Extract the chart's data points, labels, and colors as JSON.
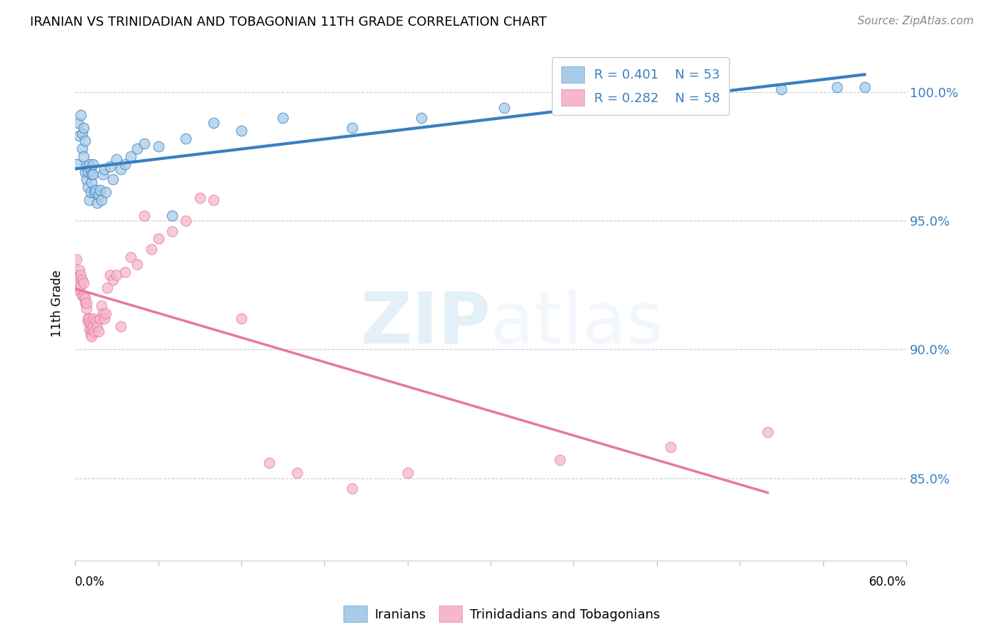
{
  "title": "IRANIAN VS TRINIDADIAN AND TOBAGONIAN 11TH GRADE CORRELATION CHART",
  "source": "Source: ZipAtlas.com",
  "ylabel": "11th Grade",
  "ytick_labels": [
    "85.0%",
    "90.0%",
    "95.0%",
    "100.0%"
  ],
  "ytick_values": [
    0.85,
    0.9,
    0.95,
    1.0
  ],
  "xmin": 0.0,
  "xmax": 0.6,
  "ymin": 0.818,
  "ymax": 1.018,
  "legend_R_iranian": "R = 0.401",
  "legend_N_iranian": "N = 53",
  "legend_R_trini": "R = 0.282",
  "legend_N_trini": "N = 58",
  "color_iranian": "#a8cce8",
  "color_trini": "#f5b8cb",
  "color_iranian_line": "#3a7fc1",
  "color_trini_line": "#e8789a",
  "color_trini_line_dash": "#e8a0b8",
  "color_legend_text": "#3a7fc1",
  "legend_label_iranian": "Iranians",
  "legend_label_trini": "Trinidadians and Tobagonians",
  "iranian_x": [
    0.001,
    0.002,
    0.003,
    0.004,
    0.005,
    0.005,
    0.006,
    0.006,
    0.007,
    0.007,
    0.008,
    0.008,
    0.009,
    0.009,
    0.01,
    0.01,
    0.011,
    0.011,
    0.012,
    0.012,
    0.013,
    0.013,
    0.014,
    0.015,
    0.016,
    0.017,
    0.018,
    0.019,
    0.02,
    0.021,
    0.022,
    0.025,
    0.027,
    0.03,
    0.033,
    0.036,
    0.04,
    0.045,
    0.05,
    0.06,
    0.07,
    0.08,
    0.1,
    0.12,
    0.15,
    0.2,
    0.25,
    0.31,
    0.38,
    0.45,
    0.51,
    0.55,
    0.57
  ],
  "iranian_y": [
    0.972,
    0.988,
    0.983,
    0.991,
    0.984,
    0.978,
    0.986,
    0.975,
    0.981,
    0.969,
    0.966,
    0.971,
    0.963,
    0.969,
    0.958,
    0.972,
    0.961,
    0.97,
    0.965,
    0.968,
    0.968,
    0.972,
    0.961,
    0.962,
    0.957,
    0.96,
    0.962,
    0.958,
    0.968,
    0.97,
    0.961,
    0.971,
    0.966,
    0.974,
    0.97,
    0.972,
    0.975,
    0.978,
    0.98,
    0.979,
    0.952,
    0.982,
    0.988,
    0.985,
    0.99,
    0.986,
    0.99,
    0.994,
    0.998,
    0.999,
    1.001,
    1.002,
    1.002
  ],
  "trini_x": [
    0.001,
    0.001,
    0.002,
    0.002,
    0.003,
    0.003,
    0.004,
    0.004,
    0.005,
    0.005,
    0.006,
    0.006,
    0.007,
    0.007,
    0.008,
    0.008,
    0.009,
    0.009,
    0.01,
    0.01,
    0.011,
    0.011,
    0.012,
    0.012,
    0.013,
    0.013,
    0.014,
    0.015,
    0.016,
    0.017,
    0.018,
    0.019,
    0.02,
    0.021,
    0.022,
    0.023,
    0.025,
    0.027,
    0.03,
    0.033,
    0.036,
    0.04,
    0.045,
    0.05,
    0.055,
    0.06,
    0.07,
    0.08,
    0.09,
    0.1,
    0.12,
    0.14,
    0.16,
    0.2,
    0.24,
    0.35,
    0.43,
    0.5
  ],
  "trini_y": [
    0.929,
    0.935,
    0.923,
    0.928,
    0.931,
    0.924,
    0.929,
    0.925,
    0.921,
    0.927,
    0.921,
    0.926,
    0.918,
    0.92,
    0.916,
    0.918,
    0.911,
    0.912,
    0.908,
    0.912,
    0.906,
    0.91,
    0.905,
    0.908,
    0.912,
    0.909,
    0.907,
    0.911,
    0.909,
    0.907,
    0.912,
    0.917,
    0.914,
    0.912,
    0.914,
    0.924,
    0.929,
    0.927,
    0.929,
    0.909,
    0.93,
    0.936,
    0.933,
    0.952,
    0.939,
    0.943,
    0.946,
    0.95,
    0.959,
    0.958,
    0.912,
    0.856,
    0.852,
    0.846,
    0.852,
    0.857,
    0.862,
    0.868
  ]
}
